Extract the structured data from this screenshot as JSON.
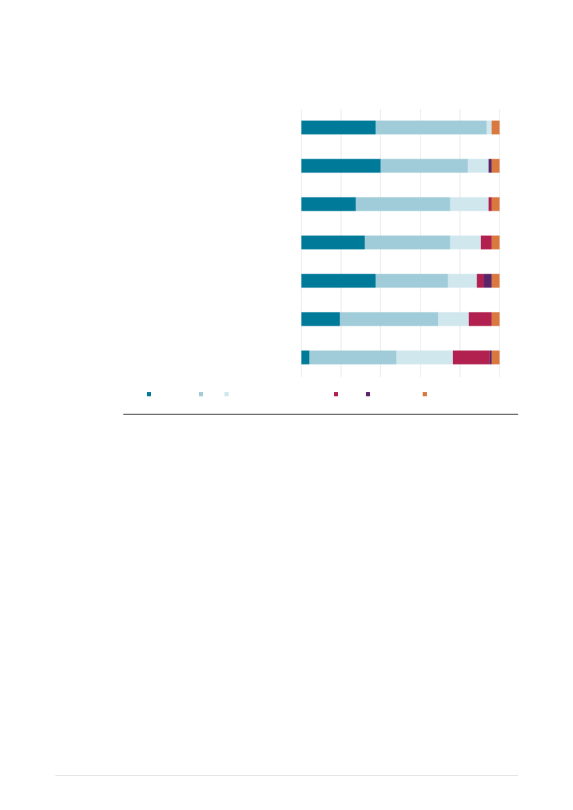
{
  "chart_data": {
    "type": "bar",
    "orientation": "horizontal",
    "stacked": true,
    "normalized": true,
    "xlim": [
      0,
      100
    ],
    "grid": true,
    "legend_position": "bottom",
    "categories": [
      "",
      "",
      "",
      "",
      "",
      "",
      ""
    ],
    "series": [
      {
        "color": "#007A99",
        "values": [
          37.5,
          40,
          27.5,
          32,
          37.5,
          19.5,
          4
        ]
      },
      {
        "color": "#9FCCD8",
        "values": [
          56,
          44,
          47.5,
          43,
          36.5,
          49.5,
          44
        ]
      },
      {
        "color": "#D1E7EE",
        "values": [
          2.5,
          10.5,
          19.5,
          15.5,
          14.5,
          15.5,
          28.5
        ]
      },
      {
        "color": "#B1204F",
        "values": [
          0,
          0,
          1.5,
          5.5,
          3.5,
          11.5,
          18.5
        ]
      },
      {
        "color": "#5A2568",
        "values": [
          0,
          1.5,
          0,
          0,
          4,
          0,
          1
        ]
      },
      {
        "color": "#D9783F",
        "values": [
          4,
          4,
          4,
          4,
          4,
          4,
          4
        ]
      }
    ]
  }
}
